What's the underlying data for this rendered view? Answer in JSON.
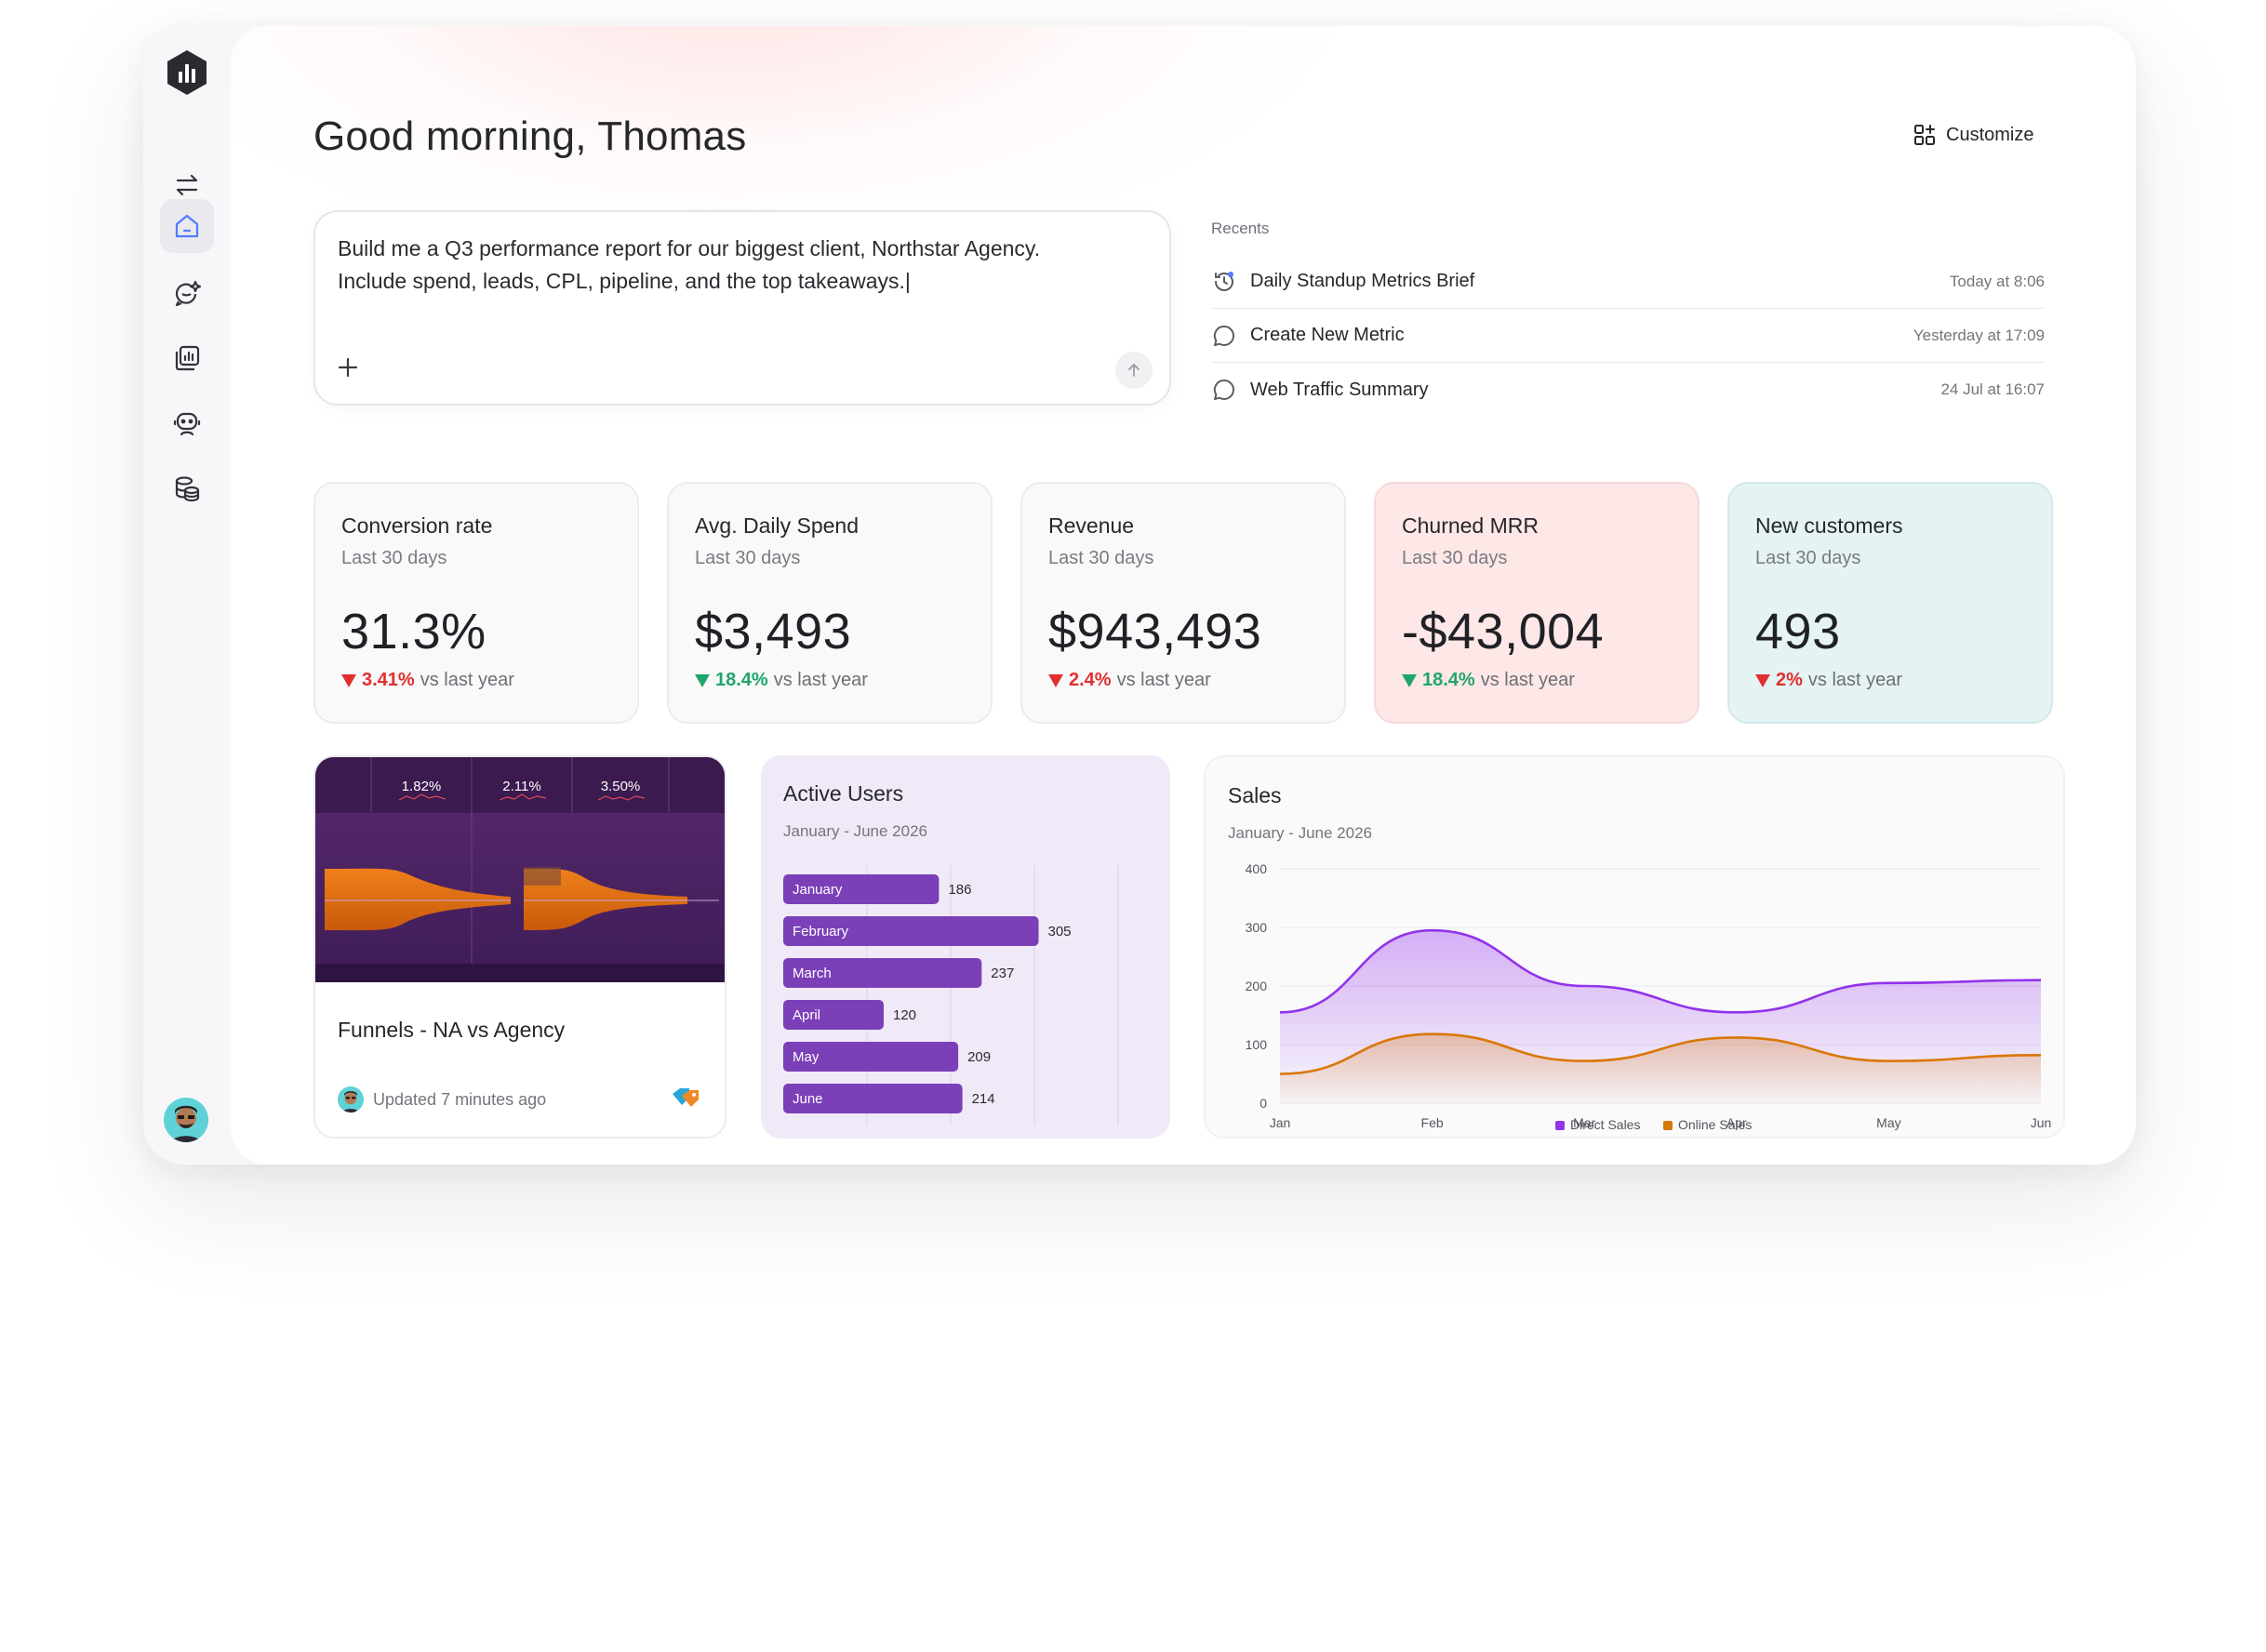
{
  "greeting": "Good morning, Thomas",
  "customize_label": "Customize",
  "prompt": {
    "text": "Build me a Q3 performance report for our biggest client, Northstar Agency.\nInclude spend, leads, CPL, pipeline, and the top takeaways.|"
  },
  "recents": {
    "title": "Recents",
    "items": [
      {
        "label": "Daily Standup Metrics Brief",
        "time": "Today at 8:06",
        "icon": "history-icon"
      },
      {
        "label": "Create New Metric",
        "time": "Yesterday at 17:09",
        "icon": "chat-bubble-icon"
      },
      {
        "label": "Web Traffic Summary",
        "time": "24 Jul at 16:07",
        "icon": "chat-bubble-icon"
      }
    ]
  },
  "kpis": [
    {
      "title": "Conversion rate",
      "sub": "Last 30 days",
      "value": "31.3%",
      "delta": "3.41%",
      "delta_color": "red",
      "suffix": "vs last year"
    },
    {
      "title": "Avg. Daily Spend",
      "sub": "Last 30 days",
      "value": "$3,493",
      "delta": "18.4%",
      "delta_color": "green",
      "suffix": "vs last year"
    },
    {
      "title": "Revenue",
      "sub": "Last 30 days",
      "value": "$943,493",
      "delta": "2.4%",
      "delta_color": "red",
      "suffix": "vs last year"
    },
    {
      "title": "Churned MRR",
      "sub": "Last 30 days",
      "value": "-$43,004",
      "delta": "18.4%",
      "delta_color": "green",
      "suffix": "vs last year"
    },
    {
      "title": "New customers",
      "sub": "Last 30 days",
      "value": "493",
      "delta": "2%",
      "delta_color": "red",
      "suffix": "vs last year"
    }
  ],
  "funnel_card": {
    "title": "Funnels - NA vs Agency",
    "updated": "Updated 7 minutes ago",
    "thumb_stats": [
      "1.82%",
      "2.11%",
      "3.50%"
    ]
  },
  "chart_data": [
    {
      "type": "bar",
      "orientation": "horizontal",
      "title": "Active Users",
      "subtitle": "January - June 2026",
      "categories": [
        "January",
        "February",
        "March",
        "April",
        "May",
        "June"
      ],
      "values": [
        186,
        305,
        237,
        120,
        209,
        214
      ],
      "color": "#7b3fb8"
    },
    {
      "type": "area",
      "title": "Sales",
      "subtitle": "January - June 2026",
      "x": [
        "Jan",
        "Feb",
        "Mar",
        "Apr",
        "May",
        "Jun"
      ],
      "ylim": [
        0,
        400
      ],
      "yticks": [
        0,
        100,
        200,
        300,
        400
      ],
      "grid": true,
      "legend": "bottom",
      "series": [
        {
          "name": "Direct Sales",
          "values": [
            155,
            295,
            200,
            155,
            205,
            210
          ],
          "color": "#9333ea"
        },
        {
          "name": "Online Sales",
          "values": [
            50,
            118,
            72,
            112,
            72,
            82
          ],
          "color": "#d97706"
        }
      ]
    }
  ]
}
